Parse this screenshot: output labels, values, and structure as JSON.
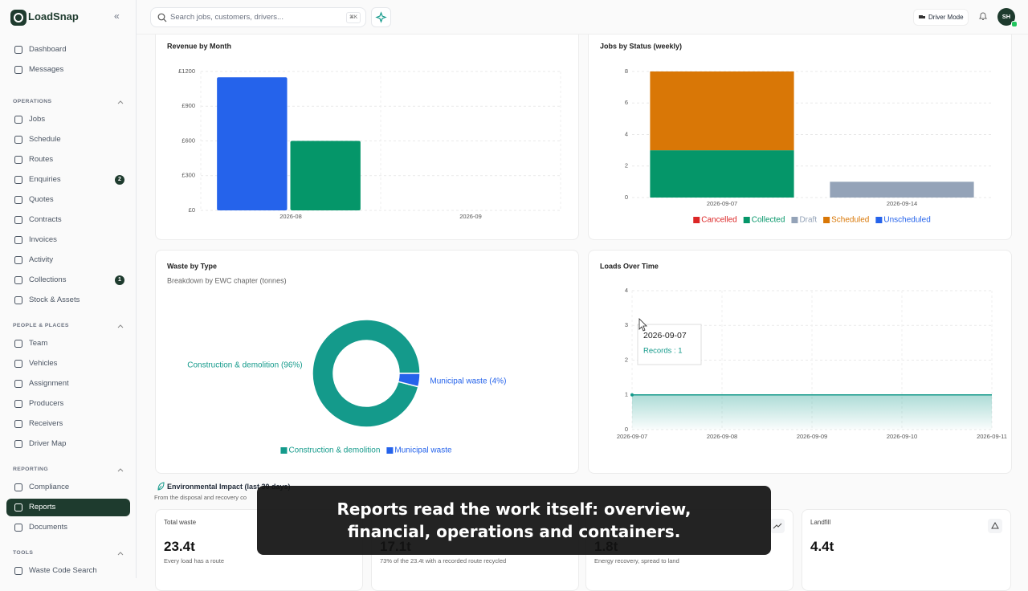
{
  "sidebar": {
    "brand": "LoadSnap",
    "items": [
      {
        "label": "Dashboard"
      },
      {
        "label": "Messages"
      }
    ],
    "sections": [
      {
        "title": "OPERATIONS",
        "items": [
          {
            "label": "Jobs"
          },
          {
            "label": "Schedule"
          },
          {
            "label": "Routes"
          },
          {
            "label": "Enquiries",
            "badge": 2
          },
          {
            "label": "Quotes"
          },
          {
            "label": "Contracts"
          },
          {
            "label": "Invoices"
          },
          {
            "label": "Activity"
          },
          {
            "label": "Collections",
            "badge": 1
          },
          {
            "label": "Stock & Assets"
          }
        ]
      },
      {
        "title": "PEOPLE & PLACES",
        "items": [
          {
            "label": "Team"
          },
          {
            "label": "Vehicles"
          },
          {
            "label": "Assignment"
          },
          {
            "label": "Producers"
          },
          {
            "label": "Receivers"
          },
          {
            "label": "Driver Map"
          }
        ]
      },
      {
        "title": "REPORTING",
        "items": [
          {
            "label": "Compliance"
          },
          {
            "label": "Reports",
            "active": true
          },
          {
            "label": "Documents"
          }
        ]
      },
      {
        "title": "TOOLS",
        "items": [
          {
            "label": "Waste Code Search"
          }
        ]
      }
    ]
  },
  "topbar": {
    "search_placeholder": "Search jobs, customers, drivers...",
    "shortcut": "⌘K",
    "driver_mode": "Driver Mode",
    "avatar": "SH"
  },
  "chart_data": [
    {
      "type": "bar",
      "title": "Revenue by Month",
      "categories": [
        "2026-08",
        "2026-09"
      ],
      "series": [
        {
          "color": "#2563eb",
          "values": [
            1150,
            0
          ]
        },
        {
          "color": "#059669",
          "values": [
            600,
            0
          ]
        }
      ],
      "ylim": [
        0,
        1200
      ],
      "yticks": [
        {
          "value": 0,
          "label": "£0"
        },
        {
          "value": 300,
          "label": "£300"
        },
        {
          "value": 600,
          "label": "£600"
        },
        {
          "value": 900,
          "label": "£900"
        },
        {
          "value": 1200,
          "label": "£1200"
        }
      ],
      "grid": true
    },
    {
      "type": "stacked_bar",
      "title": "Jobs by Status (weekly)",
      "categories": [
        "2026-09-07",
        "2026-09-14"
      ],
      "series": [
        {
          "name": "Cancelled",
          "color": "#dc2626",
          "values": [
            0,
            0
          ]
        },
        {
          "name": "Collected",
          "color": "#059669",
          "values": [
            3,
            0
          ]
        },
        {
          "name": "Draft",
          "color": "#94a3b8",
          "values": [
            0,
            1
          ]
        },
        {
          "name": "Scheduled",
          "color": "#d97706",
          "values": [
            5,
            0
          ]
        },
        {
          "name": "Unscheduled",
          "color": "#2563eb",
          "values": [
            0,
            0
          ]
        }
      ],
      "ylim": [
        0,
        8
      ],
      "yticks": [
        0,
        2,
        4,
        6,
        8
      ],
      "grid": true
    },
    {
      "type": "donut",
      "title": "Waste by Type",
      "subtitle": "Breakdown by EWC chapter (tonnes)",
      "categories": [
        "Construction & demolition",
        "Municipal waste"
      ],
      "values": [
        96,
        4
      ],
      "slice_labels": [
        "Construction & demolition (96%)",
        "Municipal waste (4%)"
      ],
      "colors": [
        "#149a8b",
        "#2563eb"
      ]
    },
    {
      "type": "line",
      "title": "Loads Over Time",
      "x": [
        "2026-09-07",
        "2026-09-08",
        "2026-09-09",
        "2026-09-10",
        "2026-09-11"
      ],
      "values": [
        1,
        1,
        1,
        1,
        1
      ],
      "color": "#149a8b",
      "ylim": [
        0,
        4
      ],
      "yticks": [
        0,
        1,
        2,
        3,
        4
      ],
      "grid": true,
      "tooltip": {
        "title": "2026-09-07",
        "text": "Records : 1"
      }
    }
  ],
  "environmental": {
    "title": "Environmental Impact (last 30 days)",
    "subtitle": "From the disposal and recovery co",
    "cards": [
      {
        "label": "Total waste",
        "value": "23.4t",
        "note": "Every load has a route"
      },
      {
        "value": "17.1t",
        "note": "73% of the 23.4t with a recorded route recycled"
      },
      {
        "value": "1.8t",
        "note": "Energy recovery, spread to land"
      },
      {
        "label": "Landfill",
        "value": "4.4t"
      }
    ]
  },
  "caption": "Reports read the work itself: overview, financial, operations and containers."
}
